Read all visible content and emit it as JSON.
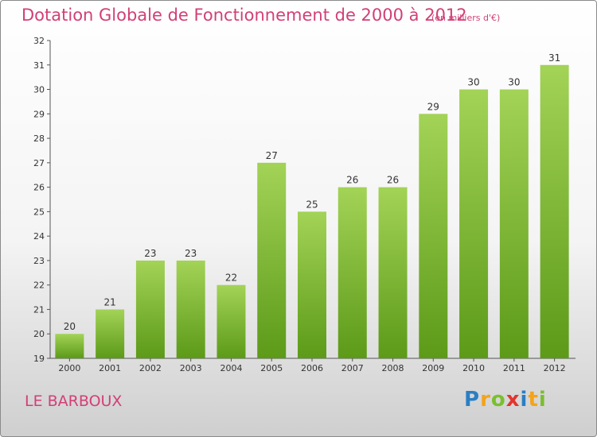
{
  "title": "Dotation Globale de Fonctionnement de 2000 à 2012",
  "subtitle": "(en milliers d'€)",
  "commune": "LE BARBOUX",
  "logo": {
    "letters": [
      "P",
      "r",
      "o",
      "x",
      "i",
      "t",
      "i"
    ],
    "colors": [
      "#2a7fc4",
      "#f5a31a",
      "#7bbf2e",
      "#e2352f",
      "#2a7fc4",
      "#f5a31a",
      "#7bbf2e"
    ]
  },
  "colors": {
    "bar_top": "#a3d357",
    "bar_bottom": "#5c9a18",
    "accent": "#d23f76"
  },
  "chart_data": {
    "type": "bar",
    "categories": [
      "2000",
      "2001",
      "2002",
      "2003",
      "2004",
      "2005",
      "2006",
      "2007",
      "2008",
      "2009",
      "2010",
      "2011",
      "2012"
    ],
    "values": [
      20,
      21,
      23,
      23,
      22,
      27,
      25,
      26,
      26,
      29,
      30,
      30,
      31
    ],
    "ylim": [
      19,
      32
    ],
    "yticks": [
      19,
      20,
      21,
      22,
      23,
      24,
      25,
      26,
      27,
      28,
      29,
      30,
      31,
      32
    ],
    "grid": false
  }
}
